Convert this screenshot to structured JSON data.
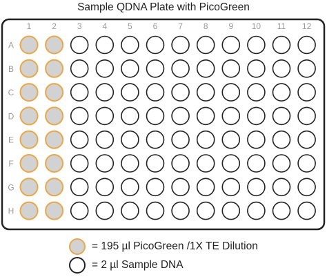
{
  "title": "Sample QDNA Plate with PicoGreen",
  "plate": {
    "columns": [
      "1",
      "2",
      "3",
      "4",
      "5",
      "6",
      "7",
      "8",
      "9",
      "10",
      "11",
      "12"
    ],
    "rows": [
      "A",
      "B",
      "C",
      "D",
      "E",
      "F",
      "G",
      "H"
    ],
    "filled_columns": [
      "1",
      "2"
    ]
  },
  "colors": {
    "filled_well": "#d2d2d2",
    "filled_well_border": "#e8a84a",
    "empty_well": "#ffffff",
    "empty_well_border": "#222222",
    "plate_border": "#222222",
    "header_text": "#9a9a9a"
  },
  "legend": [
    {
      "swatch": "filled",
      "label": "= 195 µl PicoGreen /1X TE Dilution"
    },
    {
      "swatch": "empty",
      "label": "= 2 µl Sample DNA"
    }
  ]
}
